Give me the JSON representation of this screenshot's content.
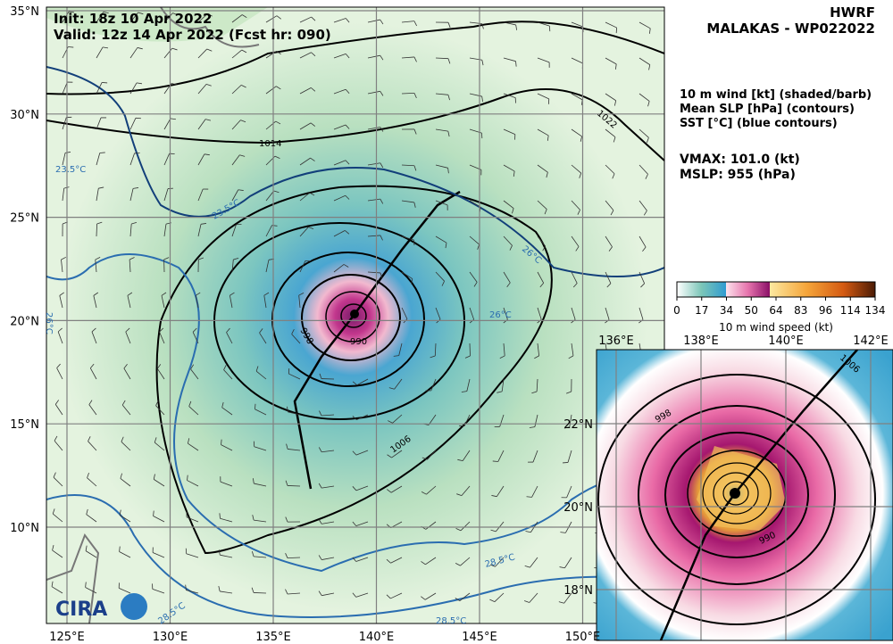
{
  "header": {
    "init": "Init:  18z 10 Apr 2022",
    "valid": "Valid: 12z 14 Apr 2022 (Fcst hr: 090)",
    "model": "HWRF",
    "storm": "MALAKAS - WP022022"
  },
  "legend": {
    "lines": [
      "10 m wind [kt] (shaded/barb)",
      "Mean SLP [hPa] (contours)",
      "SST [°C] (blue contours)"
    ],
    "vmax": "VMAX: 101.0 (kt)",
    "mslp": "MSLP:  955 (hPa)"
  },
  "colorbar": {
    "ticks": [
      "0",
      "17",
      "34",
      "50",
      "64",
      "83",
      "96",
      "114",
      "134"
    ],
    "label": "10 m wind speed (kt)"
  },
  "main_map": {
    "lat_labels": [
      "35°N",
      "30°N",
      "25°N",
      "20°N",
      "15°N",
      "10°N"
    ],
    "lon_labels": [
      "125°E",
      "130°E",
      "135°E",
      "140°E",
      "145°E",
      "150°E"
    ],
    "contour_labels": [
      "1014",
      "1022",
      "1006",
      "998",
      "990",
      "23.5°C",
      "23.5°C",
      "26°C",
      "26°C",
      "26°C",
      "28.5°C",
      "28.5°C",
      "28.5°C"
    ]
  },
  "inset_map": {
    "lat_labels": [
      "22°N",
      "20°N",
      "18°N"
    ],
    "lon_labels": [
      "136°E",
      "138°E",
      "140°E",
      "142°E"
    ],
    "contour_labels": [
      "998",
      "990",
      "1006"
    ]
  }
}
